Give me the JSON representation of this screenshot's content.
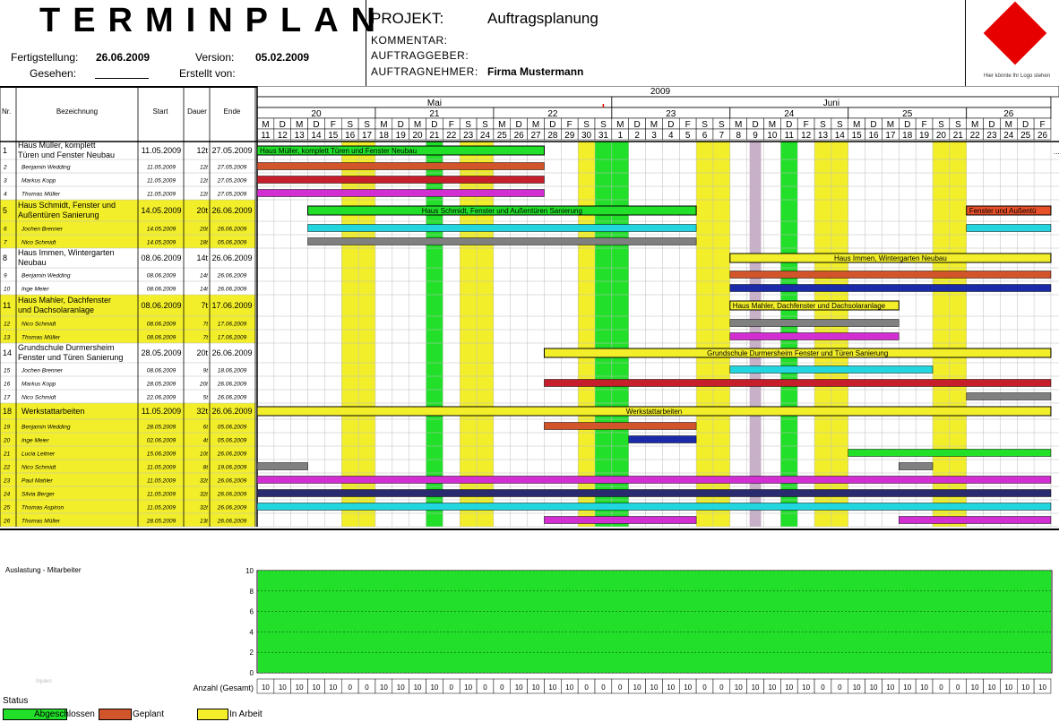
{
  "header": {
    "title": "TERMINPLAN",
    "fertigstellung_label": "Fertigstellung:",
    "fertigstellung_value": "26.06.2009",
    "version_label": "Version:",
    "version_value": "05.02.2009",
    "gesehen_label": "Gesehen:",
    "erstellt_label": "Erstellt von:",
    "projekt_label": "PROJEKT:",
    "projekt_value": "Auftragsplanung",
    "kommentar_label": "KOMMENTAR:",
    "auftraggeber_label": "AUFTRAGGEBER:",
    "auftragnehmer_label": "AUFTRAGNEHMER:",
    "auftragnehmer_value": "Firma Mustermann",
    "logo_hint": "Hier könnte Ihr Logo stehen"
  },
  "columns": {
    "nr": "Nr.",
    "bez": "Bezeichnung",
    "start": "Start",
    "dauer": "Dauer",
    "ende": "Ende"
  },
  "timeline": {
    "year": "2009",
    "months": [
      {
        "name": "Mai",
        "start_day": 0
      },
      {
        "name": "Juni",
        "start_day": 21
      }
    ],
    "weeks": [
      "20",
      "21",
      "22",
      "23",
      "24",
      "25",
      "26"
    ],
    "days": [
      "11",
      "12",
      "13",
      "14",
      "15",
      "16",
      "17",
      "18",
      "19",
      "20",
      "21",
      "22",
      "23",
      "24",
      "25",
      "26",
      "27",
      "28",
      "29",
      "30",
      "31",
      "1",
      "2",
      "3",
      "4",
      "5",
      "6",
      "7",
      "8",
      "9",
      "10",
      "11",
      "12",
      "13",
      "14",
      "15",
      "16",
      "17",
      "18",
      "19",
      "20",
      "21",
      "22",
      "23",
      "24",
      "25",
      "26"
    ],
    "weekday_letters": [
      "M",
      "D",
      "M",
      "D",
      "F",
      "S",
      "S"
    ],
    "today_day_index": 20,
    "holidays_green": [
      10,
      20,
      21,
      31
    ],
    "hatched_day": 29,
    "overflow_marker": "..."
  },
  "colors": {
    "completed": "#22e02a",
    "planned": "#d2542a",
    "in_progress": "#f2ee2a",
    "weekend": "#f2ee2a",
    "holiday": "#22e02a"
  },
  "rows": [
    {
      "nr": "1",
      "name": "Haus Müller, komplett Türen und Fenster Neubau",
      "start": "11.05.2009",
      "dauer": "12t",
      "ende": "27.05.2009",
      "type": "project",
      "bar": [
        0,
        17
      ],
      "color": "#22e02a",
      "label": "Haus Müller, komplett Türen und Fenster Neubau",
      "label_align": "left"
    },
    {
      "nr": "2",
      "name": "Benjamin Wedding",
      "start": "11.05.2009",
      "dauer": "12t",
      "ende": "27.05.2009",
      "type": "task",
      "bar": [
        0,
        17
      ],
      "color": "#d2542a"
    },
    {
      "nr": "3",
      "name": "Markus Kopp",
      "start": "11.05.2009",
      "dauer": "12t",
      "ende": "27.05.2009",
      "type": "task",
      "bar": [
        0,
        17
      ],
      "color": "#c61e2a"
    },
    {
      "nr": "4",
      "name": "Thomas Müller",
      "start": "11.05.2009",
      "dauer": "12t",
      "ende": "27.05.2009",
      "type": "task",
      "bar": [
        0,
        17
      ],
      "color": "#d22ed2"
    },
    {
      "nr": "5",
      "name": "Haus Schmidt, Fenster und Außentüren Sanierung",
      "start": "14.05.2009",
      "dauer": "20t",
      "ende": "26.06.2009",
      "type": "project",
      "bar": [
        3,
        26
      ],
      "color": "#22e02a",
      "label": "Haus Schmidt, Fenster und Außentüren Sanierung",
      "label_align": "center",
      "bar2": [
        42,
        47
      ],
      "color2": "#e8502a",
      "label2": "Fenster und Außentü"
    },
    {
      "nr": "6",
      "name": "Jochen Brenner",
      "start": "14.05.2009",
      "dauer": "20t",
      "ende": "26.06.2009",
      "type": "task",
      "bar": [
        3,
        26
      ],
      "color": "#22d6e0",
      "bar2": [
        42,
        47
      ],
      "color2": "#22d6e0"
    },
    {
      "nr": "7",
      "name": "Nico Schmidt",
      "start": "14.05.2009",
      "dauer": "18t",
      "ende": "05.06.2009",
      "type": "task",
      "bar": [
        3,
        26
      ],
      "color": "#808080"
    },
    {
      "nr": "8",
      "name": "Haus Immen, Wintergarten Neubau",
      "start": "08.06.2009",
      "dauer": "14t",
      "ende": "26.06.2009",
      "type": "other",
      "bar": [
        28,
        47
      ],
      "color": "#f2ee2a",
      "label": "Haus Immen, Wintergarten Neubau",
      "label_align": "center"
    },
    {
      "nr": "9",
      "name": "Benjamin Wedding",
      "start": "08.06.2009",
      "dauer": "14t",
      "ende": "26.06.2009",
      "type": "task",
      "bar": [
        28,
        47
      ],
      "color": "#d2542a"
    },
    {
      "nr": "10",
      "name": "Inge Meier",
      "start": "08.06.2009",
      "dauer": "14t",
      "ende": "26.06.2009",
      "type": "other_task",
      "bar": [
        28,
        47
      ],
      "color": "#1a2aa8"
    },
    {
      "nr": "11",
      "name": "Haus Mahler, Dachfenster und Dachsolaranlage",
      "start": "08.06.2009",
      "dauer": "7t",
      "ende": "17.06.2009",
      "type": "project",
      "bar": [
        28,
        38
      ],
      "color": "#f2ee2a",
      "label": "Haus Mahler, Dachfenster und Dachsolaranlage",
      "label_align": "left"
    },
    {
      "nr": "12",
      "name": "Nico Schmidt",
      "start": "08.06.2009",
      "dauer": "7t",
      "ende": "17.06.2009",
      "type": "task",
      "bar": [
        28,
        38
      ],
      "color": "#808080"
    },
    {
      "nr": "13",
      "name": "Thomas Müller",
      "start": "08.06.2009",
      "dauer": "7t",
      "ende": "17.06.2009",
      "type": "task",
      "bar": [
        28,
        38
      ],
      "color": "#d22ed2"
    },
    {
      "nr": "14",
      "name": "Grundschule Durmersheim Fenster und Türen Sanierung",
      "start": "28.05.2009",
      "dauer": "20t",
      "ende": "26.06.2009",
      "type": "other",
      "bar": [
        17,
        47
      ],
      "color": "#f2ee2a",
      "label": "Grundschule Durmersheim Fenster und Türen Sanierung",
      "label_align": "center"
    },
    {
      "nr": "15",
      "name": "Jochen Brenner",
      "start": "08.06.2009",
      "dauer": "9t",
      "ende": "18.06.2009",
      "type": "other_task",
      "bar": [
        28,
        40
      ],
      "color": "#22d6e0"
    },
    {
      "nr": "16",
      "name": "Markus Kopp",
      "start": "28.05.2009",
      "dauer": "20t",
      "ende": "26.06.2009",
      "type": "other_task",
      "bar": [
        17,
        47
      ],
      "color": "#c61e2a"
    },
    {
      "nr": "17",
      "name": "Nico Schmidt",
      "start": "22.06.2009",
      "dauer": "5t",
      "ende": "26.06.2009",
      "type": "other_task",
      "bar": [
        42,
        47
      ],
      "color": "#808080"
    },
    {
      "nr": "18",
      "name": "Werkstattarbeiten",
      "start": "11.05.2009",
      "dauer": "32t",
      "ende": "26.06.2009",
      "type": "project",
      "bar": [
        0,
        47
      ],
      "color": "#f2ee2a",
      "label": "Werkstattarbeiten",
      "label_align": "center"
    },
    {
      "nr": "19",
      "name": "Benjamin Wedding",
      "start": "28.05.2009",
      "dauer": "6t",
      "ende": "05.06.2009",
      "type": "task",
      "bar": [
        17,
        26
      ],
      "color": "#d2542a"
    },
    {
      "nr": "20",
      "name": "Inge Meier",
      "start": "02.06.2009",
      "dauer": "4t",
      "ende": "05.06.2009",
      "type": "task",
      "bar": [
        22,
        26
      ],
      "color": "#1a2aa8"
    },
    {
      "nr": "21",
      "name": "Lucia Leitner",
      "start": "15.06.2009",
      "dauer": "10t",
      "ende": "26.06.2009",
      "type": "task",
      "bar": [
        35,
        47
      ],
      "color": "#22e02a"
    },
    {
      "nr": "22",
      "name": "Nico Schmidt",
      "start": "11.05.2009",
      "dauer": "8t",
      "ende": "19.06.2009",
      "type": "task",
      "bar": [
        0,
        3
      ],
      "color": "#808080",
      "bar2": [
        38,
        40
      ],
      "color2": "#808080"
    },
    {
      "nr": "23",
      "name": "Paul Mahler",
      "start": "11.05.2009",
      "dauer": "32t",
      "ende": "26.06.2009",
      "type": "task",
      "bar": [
        0,
        47
      ],
      "color": "#d22ed2"
    },
    {
      "nr": "24",
      "name": "Silvia Berger",
      "start": "11.05.2009",
      "dauer": "32t",
      "ende": "26.06.2009",
      "type": "task",
      "bar": [
        0,
        47
      ],
      "color": "#2a2a6e"
    },
    {
      "nr": "25",
      "name": "Thomas Aspiron",
      "start": "11.05.2009",
      "dauer": "32t",
      "ende": "26.06.2009",
      "type": "task",
      "bar": [
        0,
        47
      ],
      "color": "#22d6e0"
    },
    {
      "nr": "26",
      "name": "Thomas Müller",
      "start": "28.05.2009",
      "dauer": "13t",
      "ende": "26.06.2009",
      "type": "task",
      "bar": [
        17,
        26
      ],
      "color": "#d22ed2",
      "bar2": [
        38,
        47
      ],
      "color2": "#d22ed2"
    }
  ],
  "load": {
    "title": "Auslastung - Mitarbeiter",
    "yticks": [
      "10",
      "8",
      "6",
      "4",
      "2",
      "0"
    ],
    "ymax": 10,
    "level": 10,
    "watermark": "Injulen",
    "count_label": "Anzahl (Gesamt)",
    "counts": [
      10,
      10,
      10,
      10,
      10,
      0,
      0,
      10,
      10,
      10,
      10,
      0,
      10,
      0,
      0,
      10,
      10,
      10,
      10,
      0,
      0,
      0,
      10,
      10,
      10,
      10,
      0,
      0,
      10,
      10,
      10,
      10,
      10,
      0,
      0,
      10,
      10,
      10,
      10,
      10,
      0,
      0,
      10,
      10,
      10,
      10,
      10
    ]
  },
  "legend": {
    "title": "Status",
    "items": [
      {
        "label": "Abgeschlossen",
        "color": "#22e02a"
      },
      {
        "label": "Geplant",
        "color": "#d2542a"
      },
      {
        "label": "In Arbeit",
        "color": "#f2ee2a"
      }
    ]
  }
}
